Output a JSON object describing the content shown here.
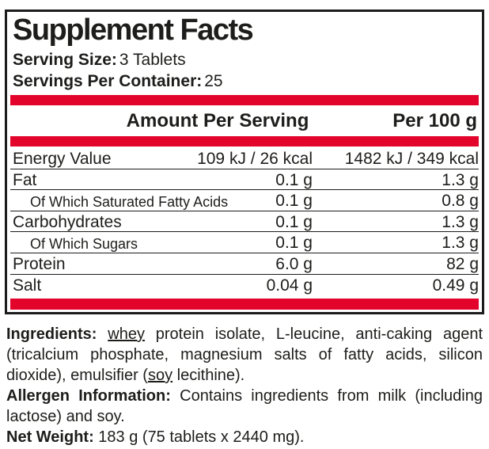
{
  "label": {
    "title": "Supplement Facts",
    "serving_size": {
      "label": "Serving Size:",
      "value": "3 Tablets"
    },
    "servings_per_container": {
      "label": "Servings Per Container:",
      "value": "25"
    },
    "columns": {
      "amount_per_serving": "Amount Per Serving",
      "per_100g": "Per 100 g"
    },
    "rows": [
      {
        "name": "Energy Value",
        "per_serving": "109 kJ / 26 kcal",
        "per_100g": "1482 kJ / 349 kcal",
        "indent": false
      },
      {
        "name": "Fat",
        "per_serving": "0.1 g",
        "per_100g": "1.3 g",
        "indent": false
      },
      {
        "name": "Of Which Saturated Fatty Acids",
        "per_serving": "0.1 g",
        "per_100g": "0.8 g",
        "indent": true
      },
      {
        "name": "Carbohydrates",
        "per_serving": "0.1 g",
        "per_100g": "1.3 g",
        "indent": false
      },
      {
        "name": "Of Which Sugars",
        "per_serving": "0.1 g",
        "per_100g": "1.3 g",
        "indent": true
      },
      {
        "name": "Protein",
        "per_serving": "6.0 g",
        "per_100g": "82 g",
        "indent": false
      },
      {
        "name": "Salt",
        "per_serving": "0.04 g",
        "per_100g": "0.49 g",
        "indent": false
      }
    ]
  },
  "footer": {
    "paragraphs": [
      {
        "name": "ingredients",
        "segments": [
          {
            "text": "Ingredients: ",
            "bold": true
          },
          {
            "text": "whey",
            "underline": true
          },
          {
            "text": " protein isolate, L-leucine, anti-caking agent (tricalcium phosphate, magnesium salts of fatty acids, silicon dioxide), emulsifier ("
          },
          {
            "text": "soy",
            "underline": true
          },
          {
            "text": " lecithine)."
          }
        ]
      },
      {
        "name": "allergen-information",
        "segments": [
          {
            "text": "Allergen Information: ",
            "bold": true
          },
          {
            "text": "Contains ingredients from milk (including lactose) and soy."
          }
        ]
      },
      {
        "name": "net-weight",
        "segments": [
          {
            "text": "Net Weight: ",
            "bold": true
          },
          {
            "text": "183 g (75 tablets x 2440 mg)."
          }
        ]
      }
    ]
  },
  "colors": {
    "accent_red": "#e2042b",
    "ink": "#1d1d1b",
    "border_black": "#1c1c1c"
  }
}
